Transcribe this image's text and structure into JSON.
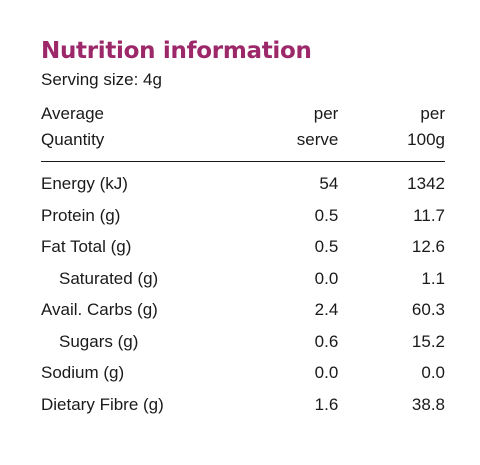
{
  "title": "Nutrition information",
  "serving_size": "Serving size: 4g",
  "header": {
    "quantity_line1": "Average",
    "quantity_line2": "Quantity",
    "serve_line1": "per",
    "serve_line2": "serve",
    "per100_line1": "per",
    "per100_line2": "100g"
  },
  "rows": [
    {
      "name": "Energy (kJ)",
      "per_serve": "54",
      "per_100g": "1342",
      "indent": false
    },
    {
      "name": "Protein (g)",
      "per_serve": "0.5",
      "per_100g": "11.7",
      "indent": false
    },
    {
      "name": "Fat Total (g)",
      "per_serve": "0.5",
      "per_100g": "12.6",
      "indent": false
    },
    {
      "name": "Saturated (g)",
      "per_serve": "0.0",
      "per_100g": "1.1",
      "indent": true
    },
    {
      "name": "Avail. Carbs (g)",
      "per_serve": "2.4",
      "per_100g": "60.3",
      "indent": false
    },
    {
      "name": "Sugars (g)",
      "per_serve": "0.6",
      "per_100g": "15.2",
      "indent": true
    },
    {
      "name": "Sodium (g)",
      "per_serve": "0.0",
      "per_100g": "0.0",
      "indent": false
    },
    {
      "name": "Dietary Fibre (g)",
      "per_serve": "1.6",
      "per_100g": "38.8",
      "indent": false
    }
  ],
  "colors": {
    "title": "#9c2769",
    "text": "#1a1a1a"
  }
}
